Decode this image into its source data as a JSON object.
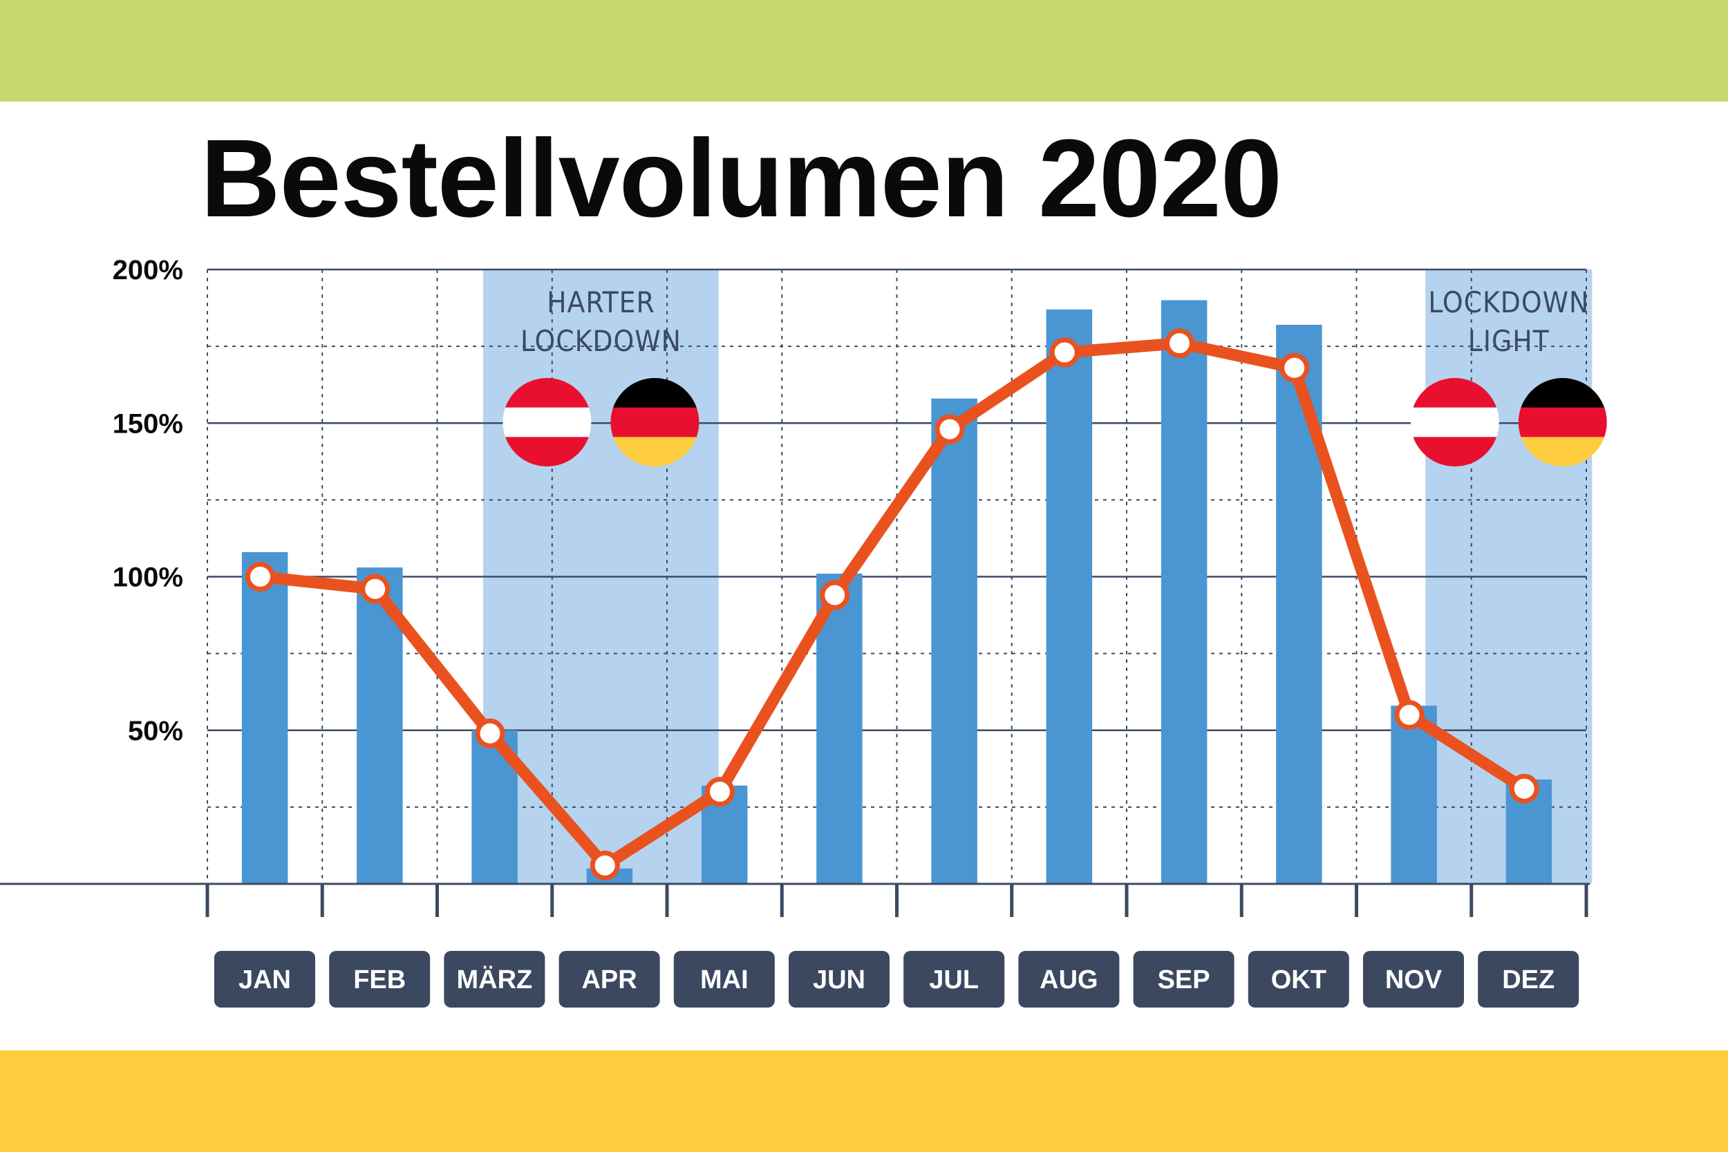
{
  "title": "Bestellvolumen 2020",
  "colors": {
    "band_top": "#c5d86d",
    "band_bottom": "#fdcd3f",
    "bar": "#4a96d2",
    "lockdown_zone": "#b5d3ee",
    "line": "#e9521e",
    "month_pill": "#3b4860",
    "grid": "#3c4a63"
  },
  "zones": [
    {
      "label_lines": [
        "HARTER",
        "LOCKDOWN"
      ],
      "from": "MÄRZ",
      "to": "APR",
      "flags": [
        "austria-flag",
        "germany-flag"
      ]
    },
    {
      "label_lines": [
        "LOCKDOWN",
        "LIGHT"
      ],
      "from": "NOV",
      "to": "DEZ",
      "flags": [
        "austria-flag",
        "germany-flag"
      ]
    }
  ],
  "chart_data": {
    "type": "bar",
    "categories": [
      "JAN",
      "FEB",
      "MÄRZ",
      "APR",
      "MAI",
      "JUN",
      "JUL",
      "AUG",
      "SEP",
      "OKT",
      "NOV",
      "DEZ"
    ],
    "series": [
      {
        "type": "bar",
        "values": [
          108,
          103,
          50,
          5,
          32,
          101,
          158,
          187,
          190,
          182,
          58,
          34
        ]
      },
      {
        "type": "line",
        "values": [
          100,
          96,
          49,
          6,
          30,
          94,
          148,
          173,
          176,
          168,
          55,
          31
        ]
      }
    ],
    "yticks": [
      "50%",
      "100%",
      "150%",
      "200%"
    ],
    "ylim": [
      0,
      200
    ],
    "grid": true,
    "title": "Bestellvolumen 2020",
    "xlabel": "",
    "ylabel": ""
  }
}
